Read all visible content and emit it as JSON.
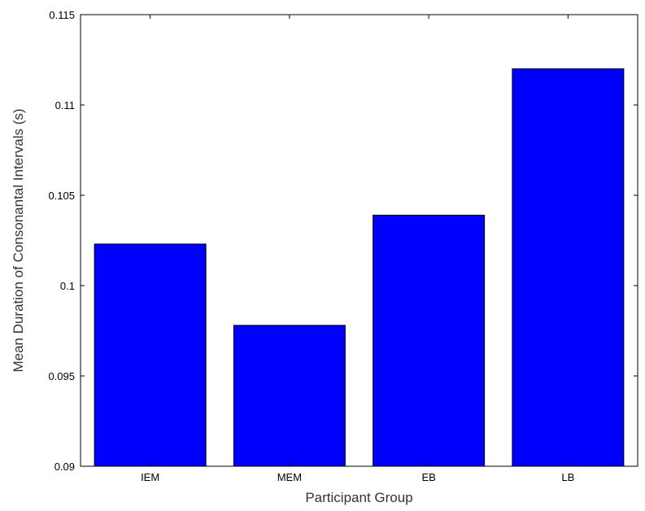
{
  "chart_data": {
    "type": "bar",
    "categories": [
      "IEM",
      "MEM",
      "EB",
      "LB"
    ],
    "values": [
      0.1023,
      0.0978,
      0.1039,
      0.112
    ],
    "xlabel": "Participant Group",
    "ylabel": "Mean Duration of Consonantal Intervals (s)",
    "ylim": [
      0.09,
      0.115
    ],
    "yticks": [
      0.09,
      0.095,
      0.1,
      0.105,
      0.11,
      0.115
    ],
    "ytick_labels": [
      "0.09",
      "0.095",
      "0.1",
      "0.105",
      "0.11",
      "0.115"
    ],
    "bar_color": "#0000ff",
    "grid": false,
    "legend": "none"
  }
}
